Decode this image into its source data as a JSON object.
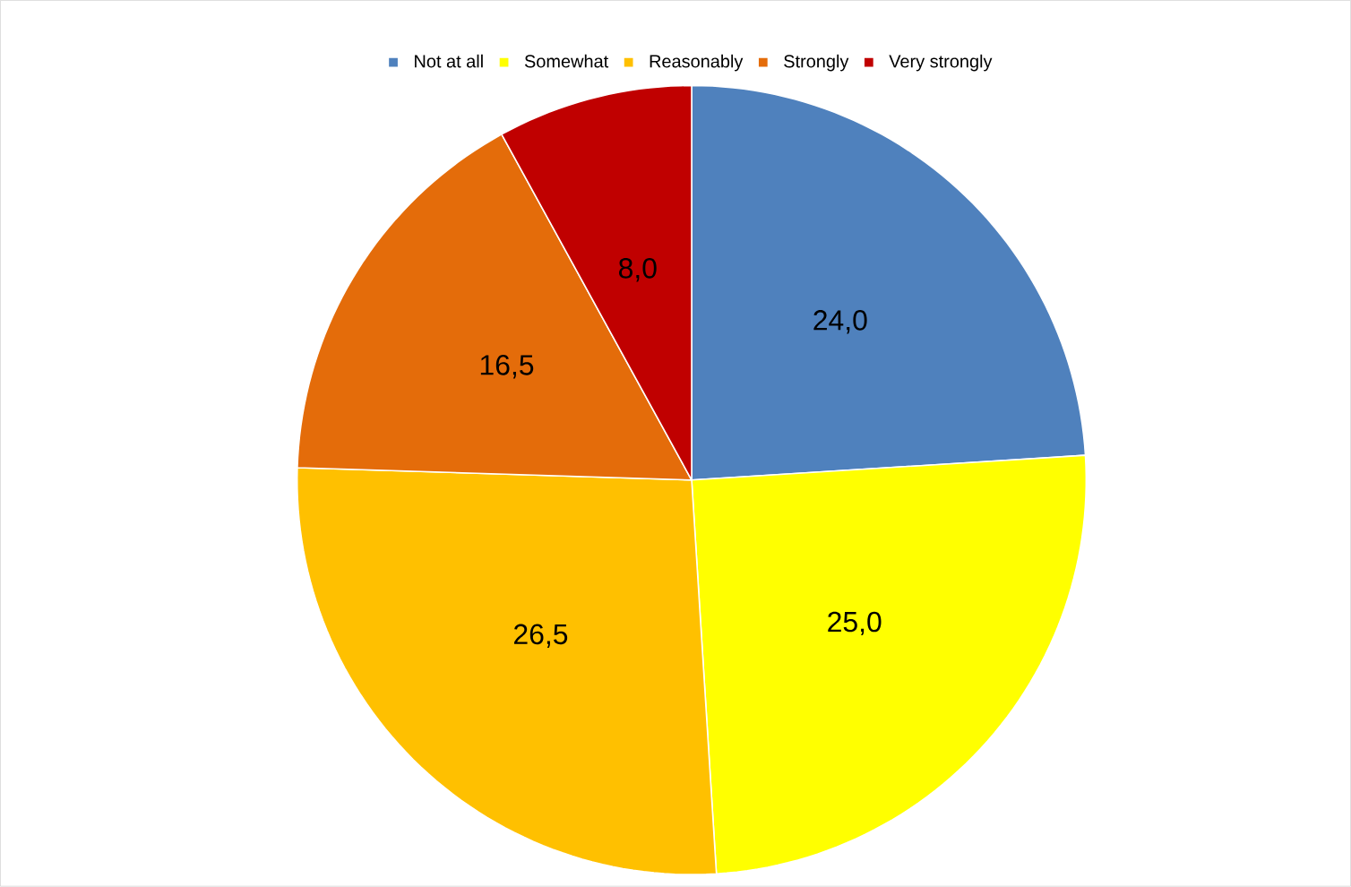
{
  "chart_data": {
    "type": "pie",
    "categories": [
      "Not at all",
      "Somewhat",
      "Reasonably",
      "Strongly",
      "Very strongly"
    ],
    "values": [
      24.0,
      25.0,
      26.5,
      16.5,
      8.0
    ],
    "value_labels": [
      "24,0",
      "25,0",
      "26,5",
      "16,5",
      "8,0"
    ],
    "colors": [
      "#4f81bd",
      "#ffff00",
      "#ffc000",
      "#e46c0a",
      "#c00000"
    ],
    "legend": "top"
  }
}
